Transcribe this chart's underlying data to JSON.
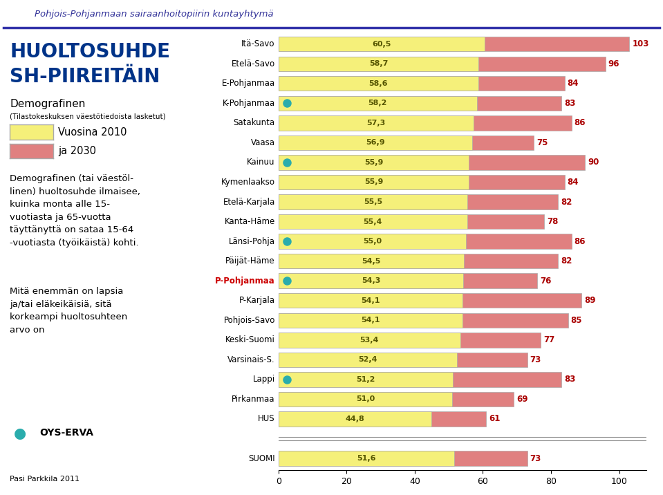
{
  "regions": [
    "Itä-Savo",
    "Etelä-Savo",
    "E-Pohjanmaa",
    "K-Pohjanmaa",
    "Satakunta",
    "Vaasa",
    "Kainuu",
    "Kymenlaakso",
    "Etelä-Karjala",
    "Kanta-Häme",
    "Länsi-Pohja",
    "Päijät-Häme",
    "P-Pohjanmaa",
    "P-Karjala",
    "Pohjois-Savo",
    "Keski-Suomi",
    "Varsinais-S.",
    "Lappi",
    "Pirkanmaa",
    "HUS",
    "SUOMI"
  ],
  "val2010": [
    60.5,
    58.7,
    58.6,
    58.2,
    57.3,
    56.9,
    55.9,
    55.9,
    55.5,
    55.4,
    55.0,
    54.5,
    54.3,
    54.1,
    54.1,
    53.4,
    52.4,
    51.2,
    51.0,
    44.8,
    51.6
  ],
  "val2030": [
    103,
    96,
    84,
    83,
    86,
    75,
    90,
    84,
    82,
    78,
    86,
    82,
    76,
    89,
    85,
    77,
    73,
    83,
    69,
    61,
    73
  ],
  "dot_rows": [
    3,
    6,
    10,
    12,
    17
  ],
  "highlight_row": 12,
  "suomi_idx": 20,
  "color_2010": "#F5F07A",
  "color_2030": "#E08080",
  "color_2010_border": "#AAAAAA",
  "color_2030_border": "#AAAAAA",
  "dot_color": "#2AACAC",
  "highlight_label_color": "#CC0000",
  "bar_label_color_2010": "#555500",
  "bar_label_color_2030": "#AA0000",
  "header_text": "Pohjois-Pohjanmaan sairaanhoitopiirin kuntayhtymä",
  "xlim": [
    0,
    108
  ],
  "xticks": [
    0,
    20,
    40,
    60,
    80,
    100
  ],
  "fig_bg": "#FFFFFF",
  "plot_bg": "#FFFFFF",
  "left_panel_bg": "#FFFFFF"
}
